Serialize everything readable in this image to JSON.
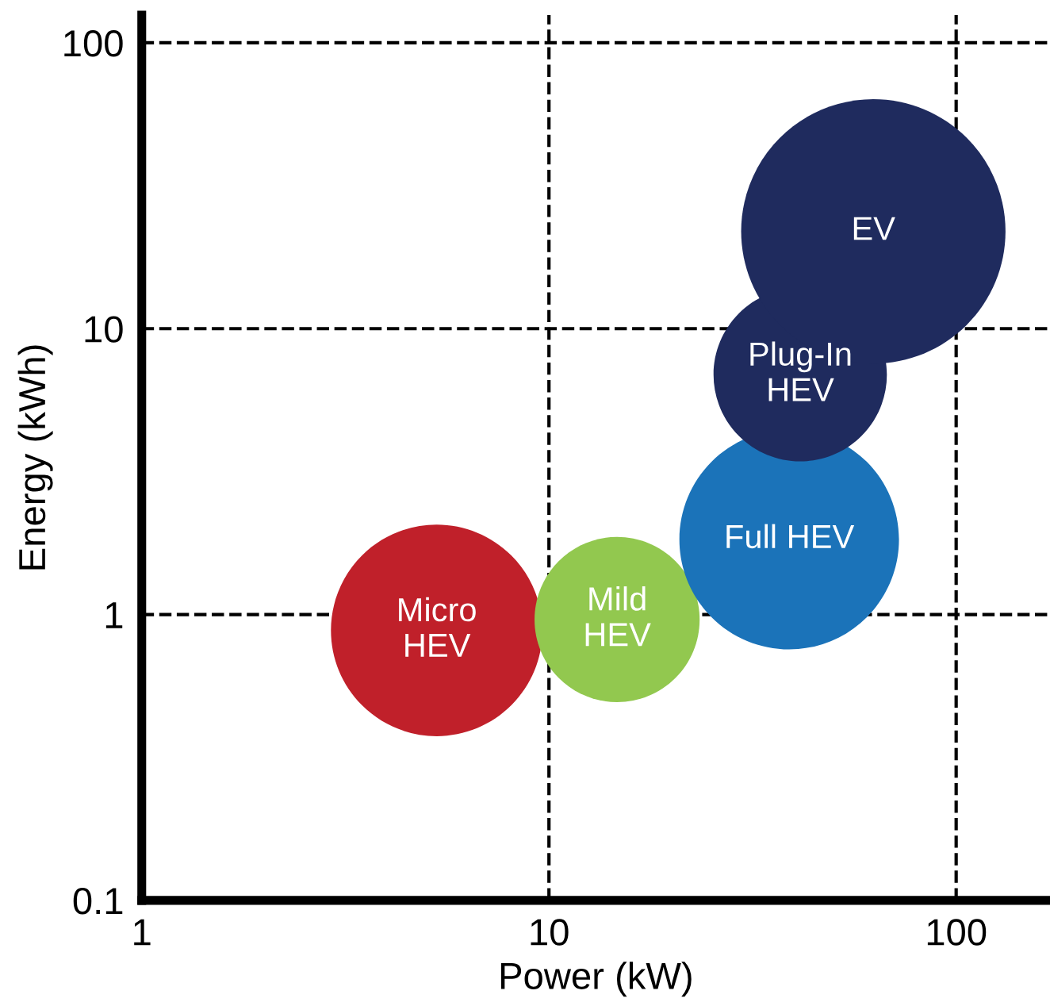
{
  "chart_data": {
    "type": "bubble",
    "xlabel": "Power (kW)",
    "ylabel": "Energy (kWh)",
    "log": "xy",
    "xlim": [
      1,
      170
    ],
    "ylim": [
      0.1,
      125
    ],
    "xticks": [
      1,
      10,
      100
    ],
    "yticks": [
      0.1,
      1,
      10,
      100
    ],
    "grid": true,
    "line_style": "dashed",
    "series": [
      {
        "name": "Micro\nHEV",
        "color": "#c0202a",
        "x": [
          5.3
        ],
        "values": [
          0.88
        ],
        "sizes": [
          0.64
        ]
      },
      {
        "name": "Mild\nHEV",
        "color": "#92c84f",
        "x": [
          14.7
        ],
        "values": [
          0.96
        ],
        "sizes": [
          0.39
        ]
      },
      {
        "name": "Full HEV",
        "color": "#1b73b9",
        "x": [
          38.9
        ],
        "values": [
          1.83
        ],
        "sizes": [
          0.69
        ]
      },
      {
        "name": "Plug-In\nHEV",
        "color": "#1f2b5e",
        "x": [
          41.4
        ],
        "values": [
          6.9
        ],
        "sizes": [
          0.43
        ]
      },
      {
        "name": "EV",
        "color": "#1f2b5e",
        "x": [
          62.6
        ],
        "values": [
          21.9
        ],
        "sizes": [
          1
        ]
      }
    ]
  }
}
